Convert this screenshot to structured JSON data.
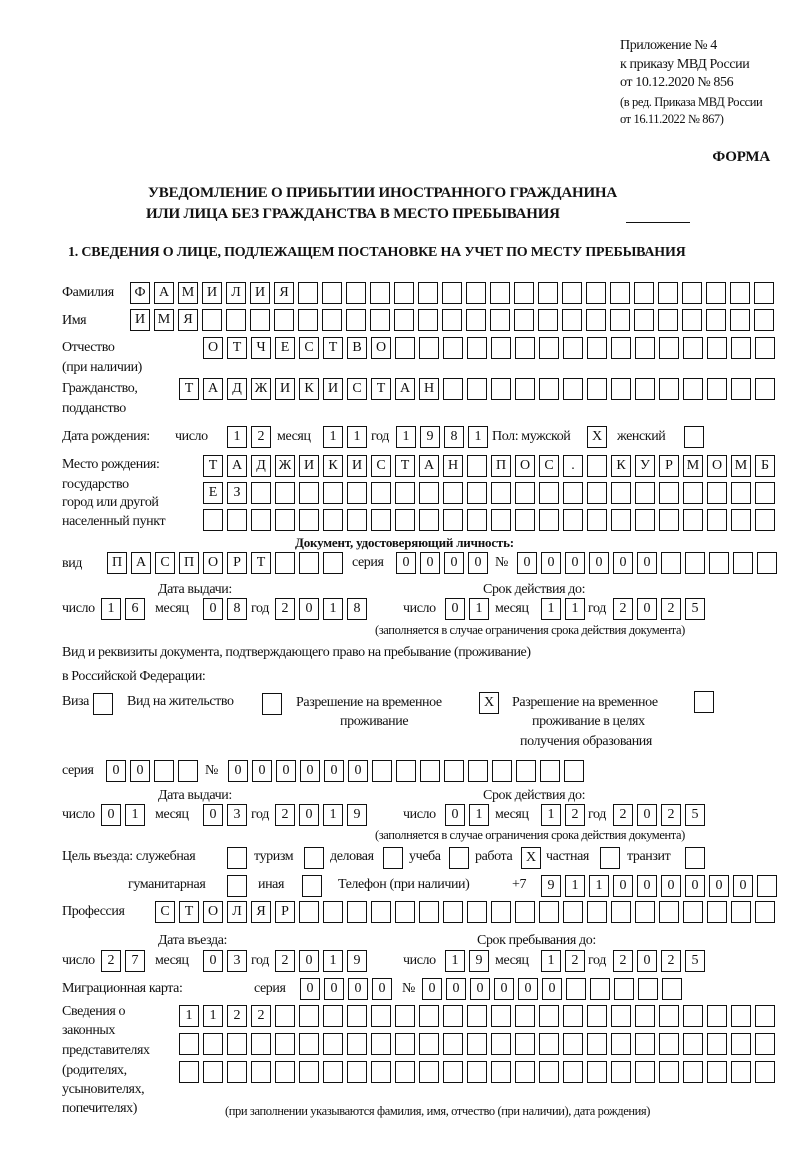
{
  "header": {
    "appendix": [
      "Приложение № 4",
      "к приказу МВД России",
      "от 10.12.2020 № 856",
      "(в ред. Приказа МВД России",
      "от 16.11.2022 № 867)"
    ],
    "forma": "ФОРМА",
    "title_line1": "УВЕДОМЛЕНИЕ О ПРИБЫТИИ ИНОСТРАННОГО ГРАЖДАНИНА",
    "title_line2": "ИЛИ ЛИЦА БЕЗ ГРАЖДАНСТВА В МЕСТО ПРЕБЫВАНИЯ",
    "section1": "1. СВЕДЕНИЯ О ЛИЦЕ, ПОДЛЕЖАЩЕМ ПОСТАНОВКЕ НА УЧЕТ ПО МЕСТУ ПРЕБЫВАНИЯ"
  },
  "person": {
    "surname_label": "Фамилия",
    "surname": "ФАМИЛИЯ",
    "name_label": "Имя",
    "name": "ИМЯ",
    "patronymic_label": "Отчество",
    "patronymic_label2": "(при наличии)",
    "patronymic": "ОТЧЕСТВО",
    "citizenship_label": "Гражданство,",
    "citizenship_label2": "подданство",
    "citizenship": "ТАДЖИКИСТАН",
    "birth_label": "Дата рождения:",
    "day_label": "число",
    "month_label": "месяц",
    "year_label": "год",
    "birth_day": "12",
    "birth_month": "11",
    "birth_year": "1981",
    "sex_male_label": "Пол: мужской",
    "sex_male": "X",
    "sex_female_label": "женский",
    "sex_female": "",
    "birthplace_labels": [
      "Место рождения:",
      "государство",
      "город или другой",
      "населенный пункт"
    ],
    "birthplace_rows": [
      "ТАДЖИКИСТАН ПОС. КУРМОМБ",
      "ЕЗ",
      ""
    ]
  },
  "id_doc": {
    "heading": "Документ, удостоверяющий личность:",
    "type_label": "вид",
    "type": "ПАСПОРТ",
    "series_label": "серия",
    "series": "0000",
    "number_label": "№",
    "number": "000000",
    "issue_label": "Дата выдачи:",
    "issue_day": "16",
    "issue_month": "08",
    "issue_year": "2018",
    "valid_label": "Срок действия до:",
    "valid_day": "01",
    "valid_month": "11",
    "valid_year": "2025",
    "note": "(заполняется в случае ограничения срока действия документа)"
  },
  "right_doc": {
    "heading1": "Вид и реквизиты документа, подтверждающего право на пребывание (проживание)",
    "heading2": "в Российской Федерации:",
    "visa_label": "Виза",
    "visa": "",
    "residence_label": "Вид на жительство",
    "residence": "",
    "trp_label1": "Разрешение на временное",
    "trp_label2": "проживание",
    "trp": "X",
    "trp_edu_label1": "Разрешение на временное",
    "trp_edu_label2": "проживание в целях",
    "trp_edu_label3": "получения образования",
    "trp_edu": "",
    "series_label": "серия",
    "series": "00",
    "number_label": "№",
    "number": "000000",
    "issue_label": "Дата выдачи:",
    "issue_day": "01",
    "issue_month": "03",
    "issue_year": "2019",
    "valid_label": "Срок действия до:",
    "valid_day": "01",
    "valid_month": "12",
    "valid_year": "2025",
    "note": "(заполняется в случае ограничения срока действия документа)"
  },
  "purpose": {
    "label_official": "Цель въезда: служебная",
    "official": "",
    "label_tourism": "туризм",
    "tourism": "",
    "label_business": "деловая",
    "business": "",
    "label_study": "учеба",
    "study": "",
    "label_work": "работа",
    "work": "X",
    "label_private": "частная",
    "private": "",
    "label_transit": "транзит",
    "transit": "",
    "label_humanitarian": "гуманитарная",
    "humanitarian": "",
    "label_other": "иная",
    "other": ""
  },
  "phone": {
    "label": "Телефон (при наличии)",
    "prefix": "+7",
    "number": "911000000"
  },
  "profession": {
    "label": "Профессия",
    "value": "СТОЛЯР"
  },
  "stay": {
    "entry_label": "Дата въезда:",
    "entry_day": "27",
    "entry_month": "03",
    "entry_year": "2019",
    "until_label": "Срок пребывания до:",
    "until_day": "19",
    "until_month": "12",
    "until_year": "2025"
  },
  "migration_card": {
    "label": "Миграционная карта:",
    "series_label": "серия",
    "series": "0000",
    "number_label": "№",
    "number": "000000"
  },
  "representatives": {
    "labels": [
      "Сведения о",
      "законных",
      "представителях",
      "(родителях,",
      "усыновителях,",
      "попечителях)"
    ],
    "rows": [
      "1122",
      "",
      ""
    ],
    "note": "(при заполнении указываются фамилия, имя, отчество (при наличии), дата рождения)"
  }
}
